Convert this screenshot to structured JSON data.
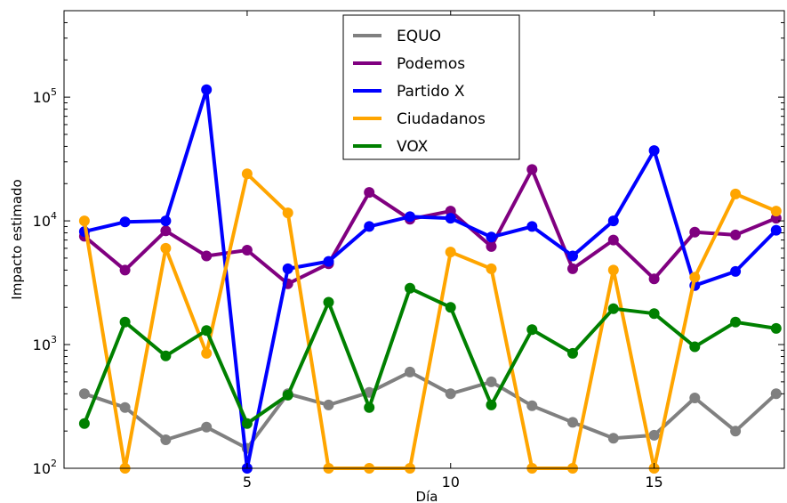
{
  "chart_data": {
    "type": "line",
    "xlabel": "Día",
    "ylabel": "Impacto estimado",
    "x": [
      1,
      2,
      3,
      4,
      5,
      6,
      7,
      8,
      9,
      10,
      11,
      12,
      13,
      14,
      15,
      16,
      17,
      18
    ],
    "xlim": [
      0.5,
      18.2
    ],
    "ylim": [
      100,
      500000
    ],
    "yscale": "log",
    "x_ticks": [
      5,
      10,
      15
    ],
    "x_tick_labels": [
      "5",
      "10",
      "15"
    ],
    "y_ticks": [
      100,
      1000,
      10000,
      100000
    ],
    "y_tick_labels": [
      {
        "base": "10",
        "exp": "2"
      },
      {
        "base": "10",
        "exp": "3"
      },
      {
        "base": "10",
        "exp": "4"
      },
      {
        "base": "10",
        "exp": "5"
      }
    ],
    "grid": false,
    "legend_position": "top-center",
    "series": [
      {
        "name": "EQUO",
        "color": "#808080",
        "values": [
          400,
          310,
          170,
          215,
          145,
          400,
          325,
          410,
          600,
          400,
          500,
          320,
          235,
          175,
          185,
          370,
          200,
          400
        ]
      },
      {
        "name": "Podemos",
        "color": "#800080",
        "values": [
          7500,
          4000,
          8300,
          5200,
          5800,
          3100,
          4500,
          17000,
          10300,
          12000,
          6200,
          26000,
          4100,
          7000,
          3400,
          8100,
          7700,
          10500
        ]
      },
      {
        "name": "Partido X",
        "color": "#0000ff",
        "values": [
          8200,
          9800,
          10000,
          115000,
          100,
          4100,
          4700,
          9000,
          10800,
          10500,
          7400,
          9000,
          5200,
          10000,
          37000,
          3000,
          3900,
          8400
        ]
      },
      {
        "name": "Ciudadanos",
        "color": "#ffa500",
        "values": [
          10000,
          100,
          6000,
          850,
          24000,
          11600,
          100,
          100,
          100,
          5600,
          4100,
          100,
          100,
          4000,
          100,
          3500,
          16500,
          12000
        ]
      },
      {
        "name": "VOX",
        "color": "#008000",
        "values": [
          230,
          1520,
          810,
          1300,
          230,
          390,
          2200,
          310,
          2850,
          2000,
          325,
          1320,
          850,
          1950,
          1780,
          960,
          1520,
          1350
        ]
      }
    ]
  }
}
